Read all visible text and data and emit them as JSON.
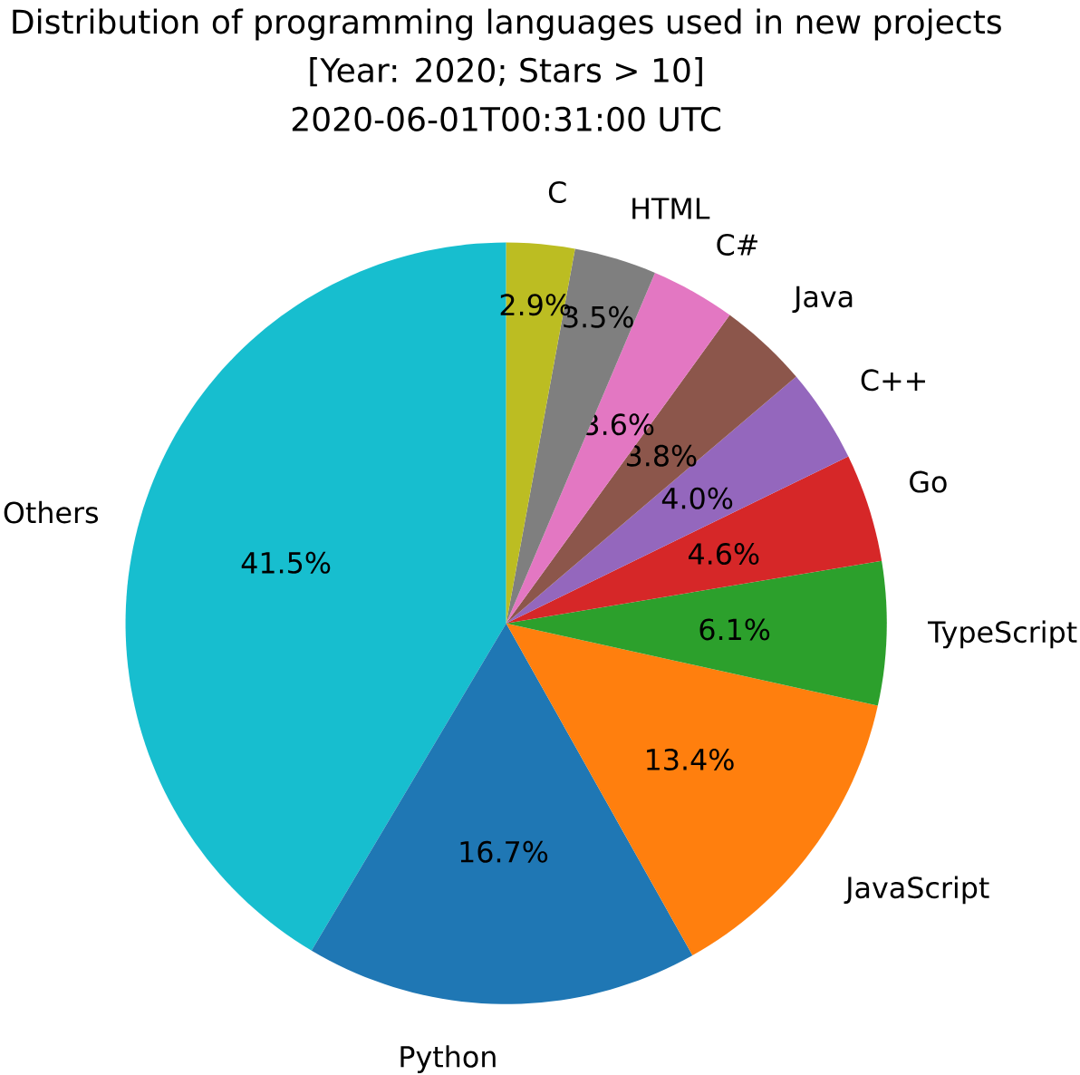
{
  "chart_data": {
    "type": "pie",
    "title": "Distribution of programming languages used in new projects",
    "subtitle": "[Year: 2020; Stars > 10]",
    "annotations": [
      "2020-06-01T00:31:00 UTC"
    ],
    "categories": [
      "Others",
      "Python",
      "JavaScript",
      "TypeScript",
      "Go",
      "C++",
      "Java",
      "C#",
      "HTML",
      "C"
    ],
    "values": [
      41.5,
      16.7,
      13.4,
      6.1,
      4.6,
      4.0,
      3.8,
      3.6,
      3.5,
      2.9
    ],
    "value_labels": [
      "41.5%",
      "16.7%",
      "13.4%",
      "6.1%",
      "4.6%",
      "4.0%",
      "3.8%",
      "3.6%",
      "3.5%",
      "2.9%"
    ],
    "colors": [
      "#17becf",
      "#1f77b4",
      "#ff7f0e",
      "#2ca02c",
      "#d62728",
      "#9467bd",
      "#8c564b",
      "#e377c2",
      "#7f7f7f",
      "#bcbd22"
    ]
  }
}
